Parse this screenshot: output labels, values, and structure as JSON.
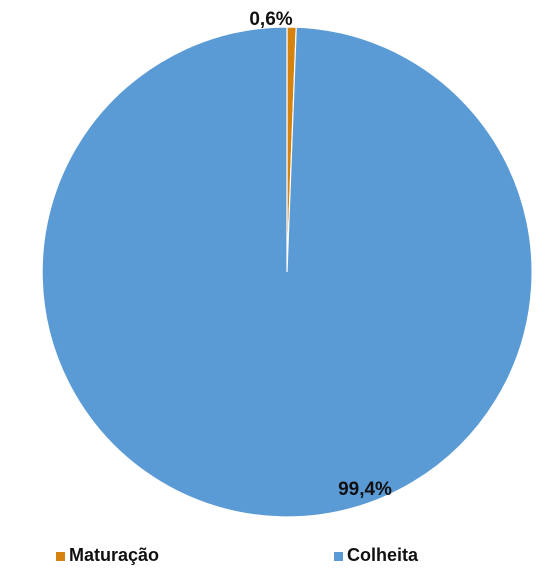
{
  "chart_data": {
    "type": "pie",
    "categories": [
      "Maturação",
      "Colheita"
    ],
    "values": [
      0.6,
      99.4
    ],
    "labels": [
      "0,6%",
      "99,4%"
    ],
    "colors": [
      "#d6820f",
      "#5b9bd5"
    ],
    "legend_position": "bottom"
  }
}
